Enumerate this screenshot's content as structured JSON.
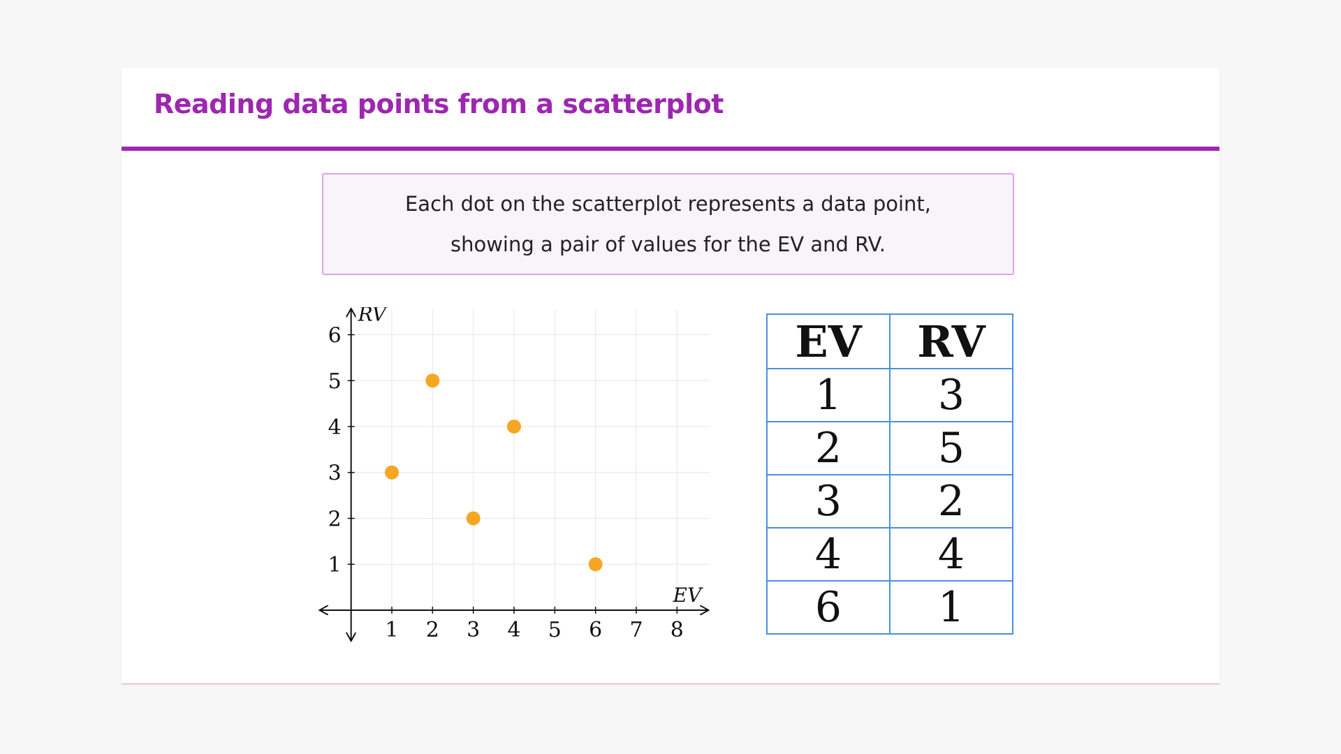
{
  "slide": {
    "title": "Reading data points from a scatterplot",
    "info_lines": [
      "Each dot on the scatterplot represents a data point,",
      "showing a pair of values for the EV and RV."
    ],
    "accent_color": "#9d27b0"
  },
  "chart_data": {
    "type": "scatter",
    "xlabel": "EV",
    "ylabel": "RV",
    "x": [
      1,
      2,
      3,
      4,
      6
    ],
    "y": [
      3,
      5,
      2,
      4,
      1
    ],
    "xlim": [
      -0.8,
      8.8
    ],
    "ylim": [
      -0.7,
      6.6
    ],
    "xticks": [
      1,
      2,
      3,
      4,
      5,
      6,
      7,
      8
    ],
    "yticks": [
      1,
      2,
      3,
      4,
      5,
      6
    ],
    "grid": true,
    "point_color": "#f5a623"
  },
  "table": {
    "headers": [
      "EV",
      "RV"
    ],
    "rows": [
      [
        "1",
        "3"
      ],
      [
        "2",
        "5"
      ],
      [
        "3",
        "2"
      ],
      [
        "4",
        "4"
      ],
      [
        "6",
        "1"
      ]
    ],
    "border_color": "#4a90e2"
  }
}
